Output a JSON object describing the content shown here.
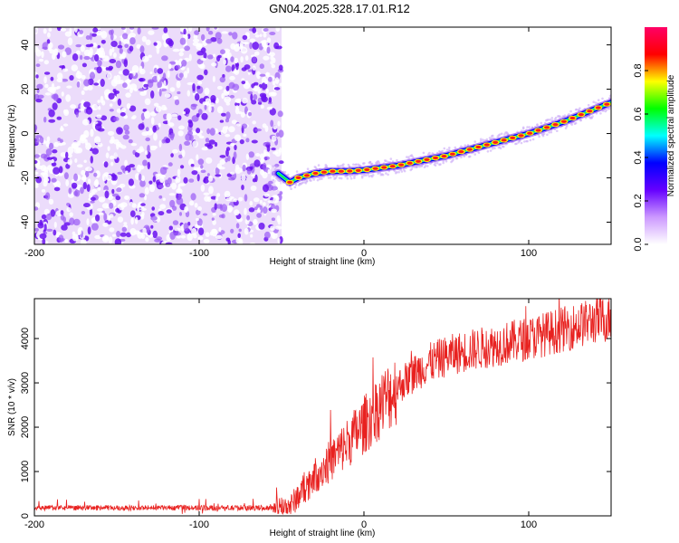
{
  "title": "GN04.2025.328.17.01.R12",
  "chart_data": [
    {
      "type": "heatmap",
      "name": "spectrogram",
      "xlabel": "Height of straight line (km)",
      "ylabel": "Frequency (Hz)",
      "xlim": [
        -200,
        150
      ],
      "ylim": [
        -50,
        48
      ],
      "xticks": [
        -200,
        -100,
        0,
        100
      ],
      "yticks": [
        -40,
        -20,
        0,
        20,
        40
      ],
      "colorbar": {
        "label": "Normalized spectral amplitude",
        "range": [
          0,
          1
        ],
        "ticks": [
          "0.0",
          "0.2",
          "0.4",
          "0.6",
          "0.8"
        ],
        "stops": [
          "#ffffff",
          "#cc99ff",
          "#6600ff",
          "#0000ff",
          "#00ffff",
          "#00ff00",
          "#ffff00",
          "#ff0000",
          "#ff0066"
        ]
      },
      "noise_region_x": [
        -200,
        -50
      ],
      "noise_color": "#7a2cf0",
      "track": {
        "x": [
          -52,
          -45,
          -40,
          -30,
          -20,
          -10,
          0,
          10,
          20,
          30,
          40,
          50,
          60,
          70,
          80,
          90,
          100,
          110,
          120,
          130,
          140,
          150
        ],
        "freq": [
          -18,
          -22,
          -20,
          -18,
          -17,
          -17,
          -16.5,
          -15.5,
          -14.5,
          -13,
          -11.5,
          -10,
          -8,
          -6,
          -4,
          -2,
          0,
          2.5,
          5,
          8,
          11,
          14
        ]
      }
    },
    {
      "type": "line",
      "name": "snr",
      "xlabel": "Height of straight line (km)",
      "ylabel": "SNR (10 * v/v)",
      "xlim": [
        -200,
        150
      ],
      "ylim": [
        0,
        4900
      ],
      "xticks": [
        -200,
        -100,
        0,
        100
      ],
      "yticks": [
        0,
        1000,
        2000,
        3000,
        4000
      ],
      "color": "#e8211f",
      "trend": {
        "x": [
          -200,
          -60,
          -45,
          -40,
          -30,
          -20,
          -10,
          0,
          10,
          20,
          30,
          40,
          50,
          60,
          80,
          100,
          120,
          140,
          150
        ],
        "y": [
          180,
          180,
          200,
          450,
          900,
          1250,
          1650,
          2050,
          2500,
          2900,
          3200,
          3450,
          3600,
          3700,
          3850,
          4000,
          4200,
          4400,
          4450
        ]
      }
    }
  ]
}
